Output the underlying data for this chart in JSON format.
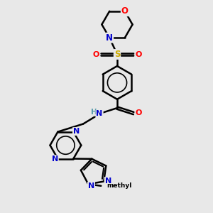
{
  "bg_color": "#e8e8e8",
  "atom_colors": {
    "C": "#000000",
    "N": "#0000cc",
    "O": "#ff0000",
    "S": "#ccaa00",
    "H": "#5599aa"
  },
  "bond_color": "#000000",
  "bond_lw": 1.8,
  "figsize": [
    3.0,
    3.0
  ],
  "dpi": 100
}
